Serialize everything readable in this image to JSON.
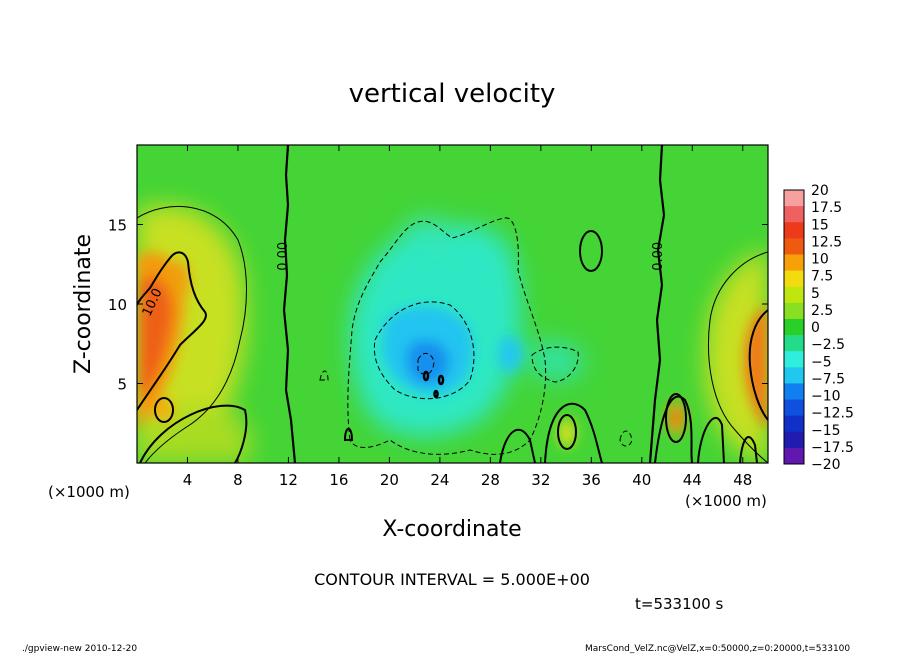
{
  "chart_data": {
    "type": "heatmap",
    "title": "vertical velocity",
    "xlabel": "X-coordinate",
    "ylabel": "Z-coordinate",
    "x_unit_label": "(×1000 m)",
    "y_unit_label": "(×1000 m)",
    "x_ticks": [
      4,
      8,
      12,
      16,
      20,
      24,
      28,
      32,
      36,
      40,
      44,
      48
    ],
    "y_ticks": [
      5,
      10,
      15
    ],
    "xlim": [
      0,
      50
    ],
    "ylim": [
      0,
      20
    ],
    "contour_interval_text": "CONTOUR INTERVAL = 5.000E+00",
    "time_text": "t=533100 s",
    "contour_labels": [
      {
        "text": "0.00",
        "x": 11.9,
        "y": 13.0,
        "rotate": -90
      },
      {
        "text": "0.00",
        "x": 41.6,
        "y": 13.0,
        "rotate": -90
      },
      {
        "text": "10.0",
        "x": 1.5,
        "y": 10.0,
        "rotate": -65
      }
    ],
    "colorbar": {
      "labels": [
        "20",
        "17.5",
        "15",
        "12.5",
        "10",
        "7.5",
        "5",
        "2.5",
        "0",
        "−2.5",
        "−5",
        "−7.5",
        "−10",
        "−12.5",
        "−15",
        "−17.5",
        "−20"
      ],
      "colors": [
        "#f6a0a0",
        "#ef6060",
        "#ec3a1a",
        "#ee5a10",
        "#f8a008",
        "#f2dc10",
        "#c0e610",
        "#8ae020",
        "#28d028",
        "#22dc88",
        "#30eedc",
        "#20c8f0",
        "#1080f0",
        "#1050e0",
        "#1030c8",
        "#201cb0",
        "#6018b0"
      ]
    },
    "field_features": [
      {
        "kind": "updraft",
        "x": 3.0,
        "z": 8.0,
        "value": 12.5
      },
      {
        "kind": "updraft",
        "x": 48.5,
        "z": 7.0,
        "value": 11.0
      },
      {
        "kind": "updraft",
        "x": 42.5,
        "z": 3.0,
        "value": 10.0
      },
      {
        "kind": "updraft",
        "x": 34.0,
        "z": 2.0,
        "value": 6.0
      },
      {
        "kind": "downdraft",
        "x": 23.0,
        "z": 7.0,
        "value": -12.0
      }
    ]
  },
  "footer": {
    "left": "./gpview-new   2010-12-20",
    "right": "MarsCond_VelZ.nc@VelZ,x=0:50000,z=0:20000,t=533100"
  }
}
